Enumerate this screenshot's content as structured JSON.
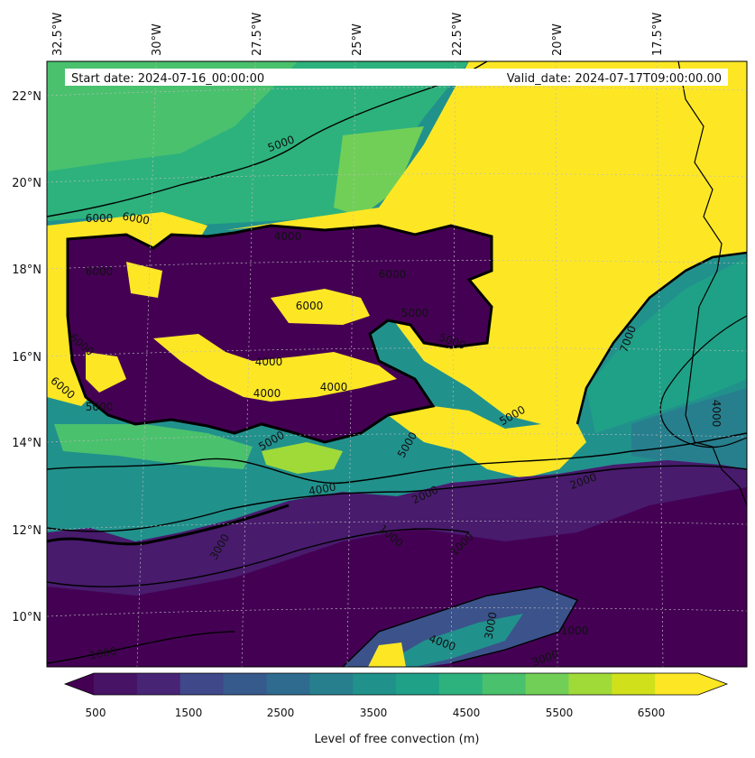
{
  "header": {
    "start_date": "Start date: 2024-07-16_00:00:00",
    "valid_date": "Valid_date: 2024-07-17T09:00:00.00"
  },
  "axes": {
    "lon_labels": [
      "32.5°W",
      "30°W",
      "27.5°W",
      "25°W",
      "22.5°W",
      "20°W",
      "17.5°W"
    ],
    "lat_labels": [
      "22°N",
      "20°N",
      "18°N",
      "16°N",
      "14°N",
      "12°N",
      "10°N"
    ]
  },
  "contour_labels": [
    "5000",
    "6000",
    "6000",
    "6000",
    "4000",
    "4000",
    "4000",
    "4000",
    "4000",
    "5000",
    "5000",
    "5000",
    "7000",
    "4000",
    "2000",
    "1000",
    "1000",
    "1000",
    "3000",
    "2000",
    "4000",
    "3000",
    "1000",
    "3000",
    "6000",
    "6000",
    "6000",
    "6000",
    "5000",
    "5000",
    "5000"
  ],
  "colorbar": {
    "title": "Level of free convection (m)",
    "tick_labels": [
      "500",
      "1500",
      "2500",
      "3500",
      "4500",
      "5500",
      "6500"
    ],
    "colors": [
      "#471365",
      "#482475",
      "#3f4889",
      "#375a8c",
      "#2f6b8e",
      "#277f8e",
      "#21918c",
      "#1fa187",
      "#2db27d",
      "#4ac16d",
      "#71cf57",
      "#a0da39",
      "#d0e11c",
      "#fde725"
    ],
    "extend": "both"
  },
  "map_data": {
    "projection": "Lambert-like curved graticule",
    "extent": {
      "lon_min": -33,
      "lon_max": -16,
      "lat_min": 9,
      "lat_max": 23
    },
    "variable": "Level of free convection",
    "units": "m",
    "levels": [
      500,
      1000,
      1500,
      2000,
      2500,
      3000,
      3500,
      4000,
      4500,
      5000,
      5500,
      6000,
      6500,
      7000
    ],
    "coastline": "West Africa (Senegal / Mauritania / Guinea-Bissau) at right edge"
  }
}
